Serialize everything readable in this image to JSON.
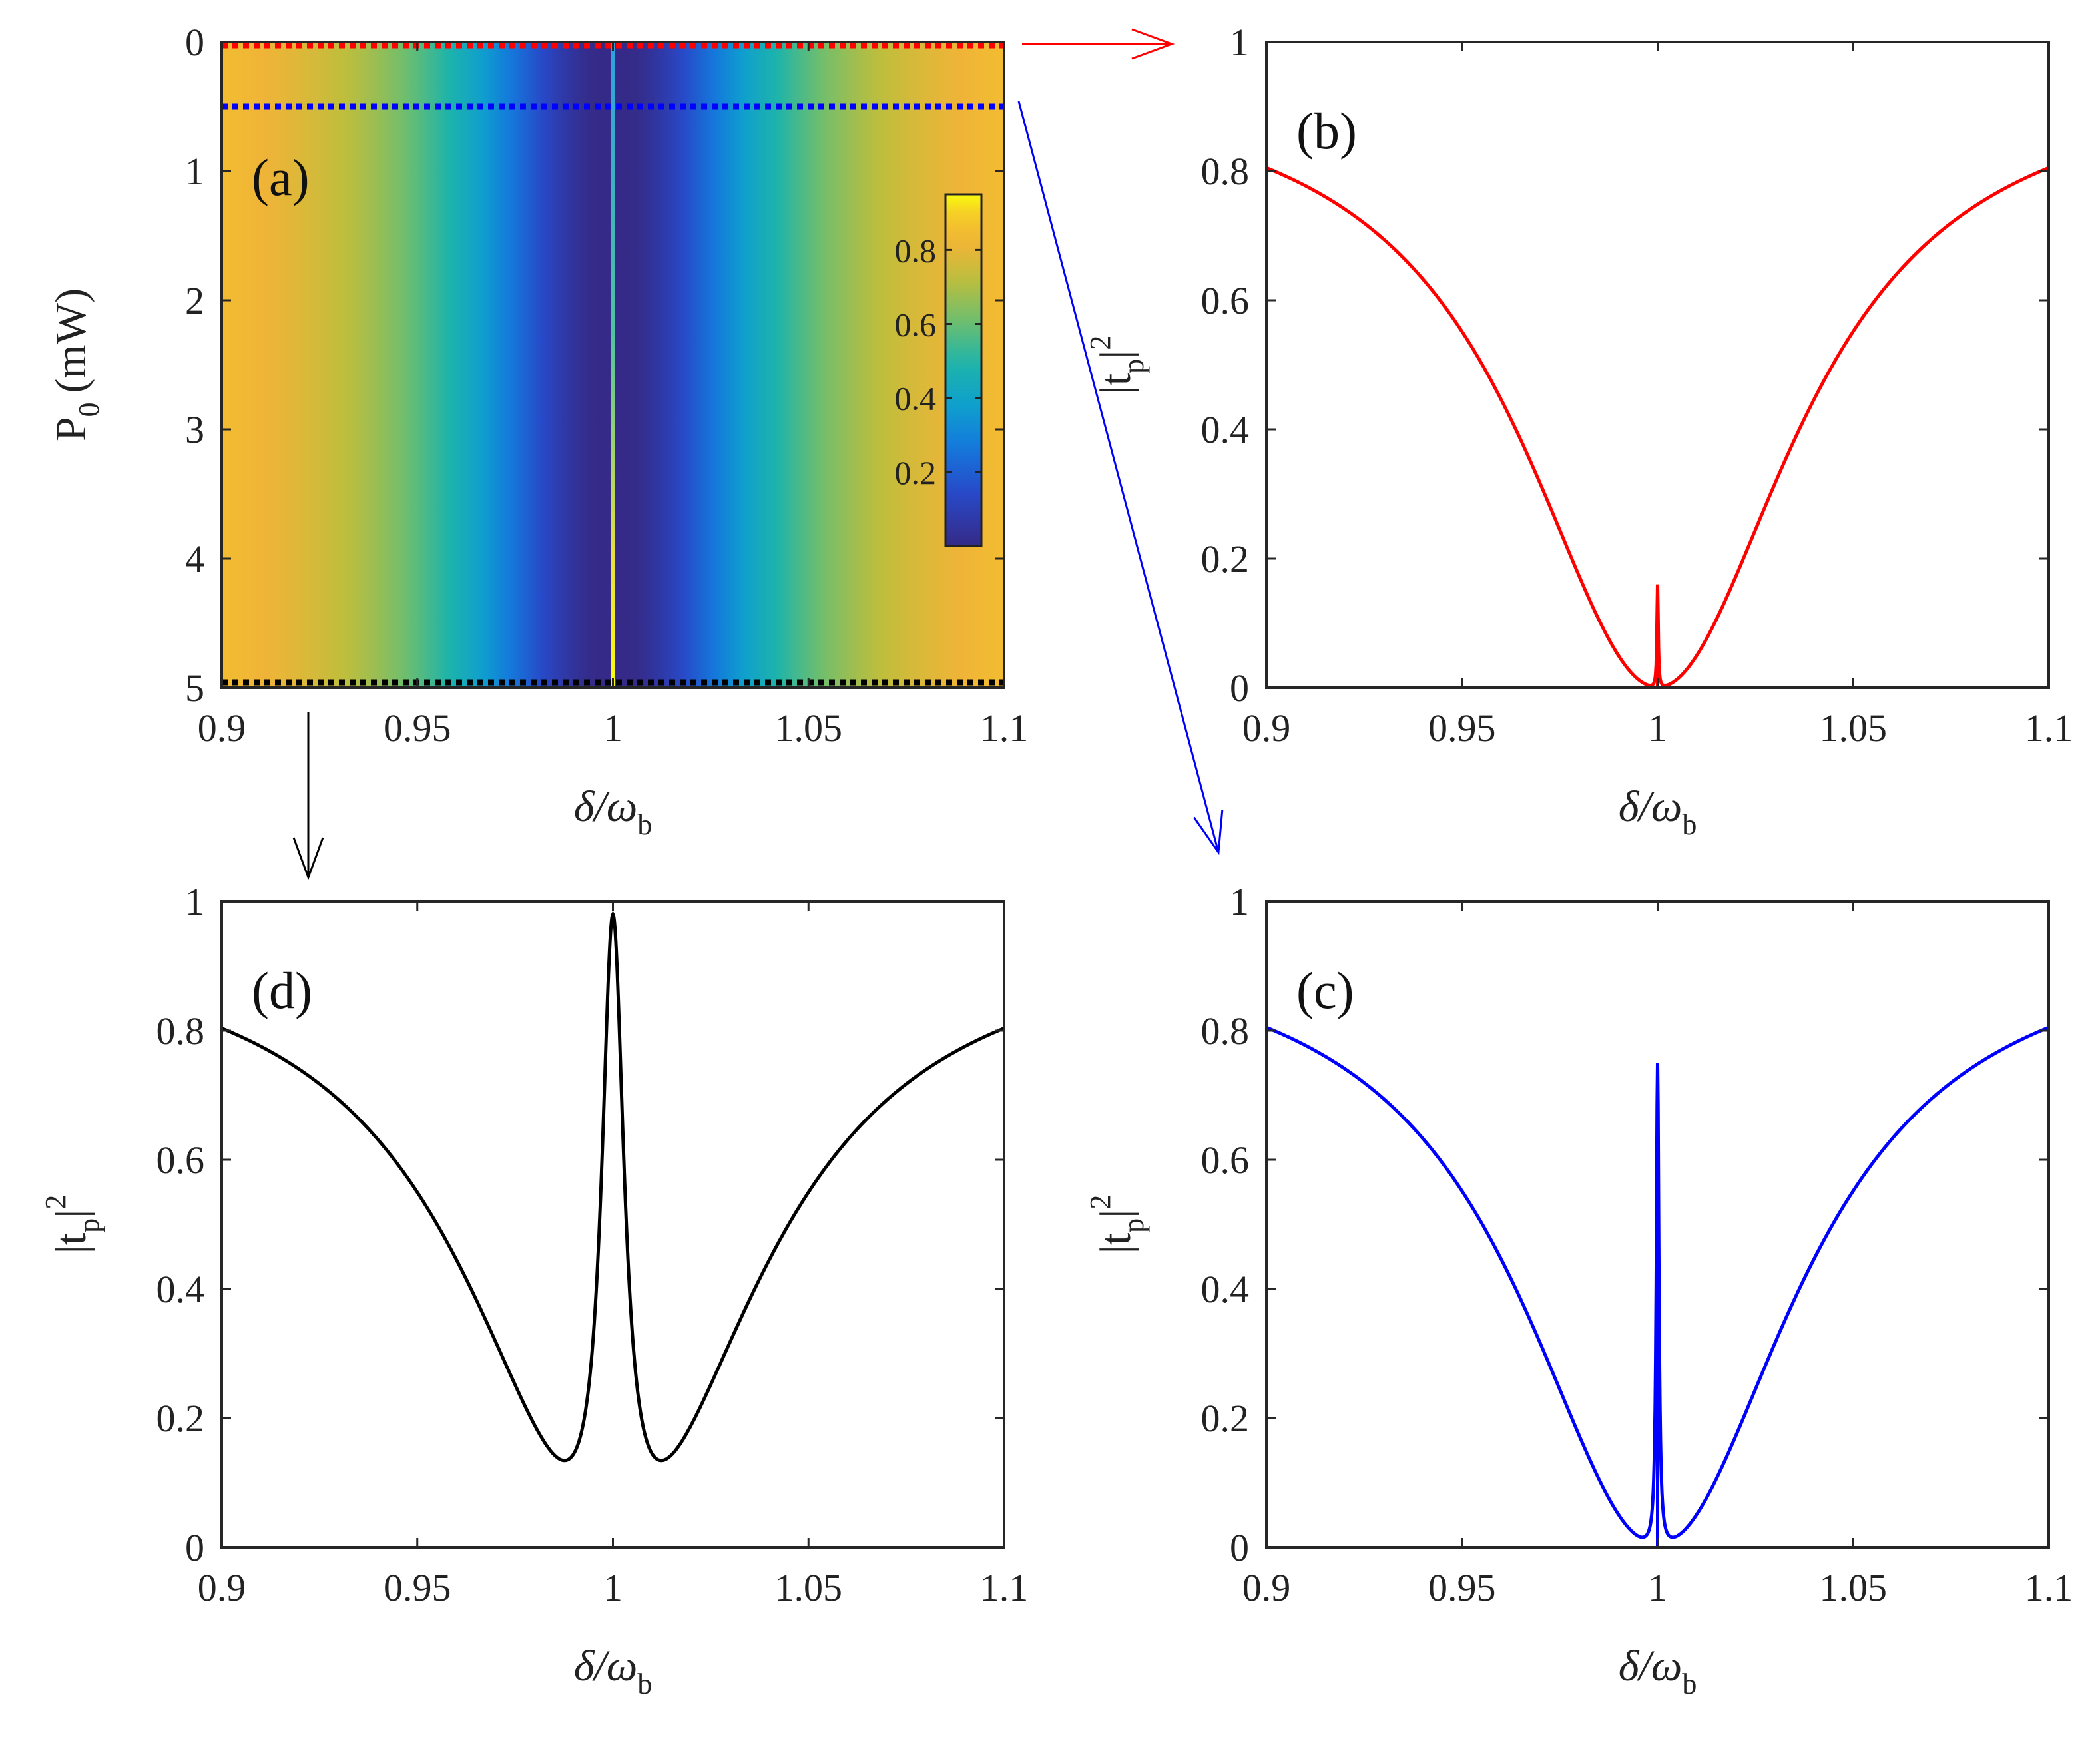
{
  "chart_data": [
    {
      "id": "a",
      "type": "heatmap",
      "panel_label": "(a)",
      "xlabel": "δ/ω",
      "xlabel_sub": "b",
      "ylabel": "P",
      "ylabel_sub": "0",
      "ylabel_unit": "(mW)",
      "xlim": [
        0.9,
        1.1
      ],
      "ylim": [
        0,
        5
      ],
      "y_reversed": true,
      "xticks": [
        0.9,
        0.95,
        1,
        1.05,
        1.1
      ],
      "xtick_labels": [
        "0.9",
        "0.95",
        "1",
        "1.05",
        "1.1"
      ],
      "yticks": [
        0,
        1,
        2,
        3,
        4,
        5
      ],
      "ytick_labels": [
        "0",
        "1",
        "2",
        "3",
        "4",
        "5"
      ],
      "colormap": "parula",
      "colorbar_ticks": [
        0.2,
        0.4,
        0.6,
        0.8
      ],
      "colorbar_tick_labels": [
        "0.2",
        "0.4",
        "0.6",
        "0.8"
      ],
      "colorbar_range": [
        0,
        0.95
      ],
      "cut_lines": [
        {
          "P0": 0,
          "color": "#ff0000",
          "target": "b"
        },
        {
          "P0": 0.5,
          "color": "#0000ff",
          "target": "c"
        },
        {
          "P0": 5,
          "color": "#000000",
          "target": "d"
        }
      ]
    },
    {
      "id": "b",
      "type": "line",
      "panel_label": "(b)",
      "xlabel": "δ/ω",
      "xlabel_sub": "b",
      "ylabel": "|t",
      "ylabel_sub": "p",
      "ylabel_sup": "|2",
      "xlim": [
        0.9,
        1.1
      ],
      "ylim": [
        0,
        1
      ],
      "xticks": [
        0.9,
        0.95,
        1,
        1.05,
        1.1
      ],
      "xtick_labels": [
        "0.9",
        "0.95",
        "1",
        "1.05",
        "1.1"
      ],
      "yticks": [
        0,
        0.2,
        0.4,
        0.6,
        0.8,
        1
      ],
      "ytick_labels": [
        "0",
        "0.2",
        "0.4",
        "0.6",
        "0.8",
        "1"
      ],
      "series": [
        {
          "name": "P0 = 0 mW",
          "color": "#ff0000",
          "peak_height": 0.16,
          "peak_width": 0.0002
        }
      ]
    },
    {
      "id": "c",
      "type": "line",
      "panel_label": "(c)",
      "xlabel": "δ/ω",
      "xlabel_sub": "b",
      "ylabel": "|t",
      "ylabel_sub": "p",
      "ylabel_sup": "|2",
      "xlim": [
        0.9,
        1.1
      ],
      "ylim": [
        0,
        1
      ],
      "xticks": [
        0.9,
        0.95,
        1,
        1.05,
        1.1
      ],
      "xtick_labels": [
        "0.9",
        "0.95",
        "1",
        "1.05",
        "1.1"
      ],
      "yticks": [
        0,
        0.2,
        0.4,
        0.6,
        0.8,
        1
      ],
      "ytick_labels": [
        "0",
        "0.2",
        "0.4",
        "0.6",
        "0.8",
        "1"
      ],
      "series": [
        {
          "name": "P0 = 0.5 mW",
          "color": "#0000ff",
          "peak_height": 0.75,
          "peak_width": 0.0004
        }
      ]
    },
    {
      "id": "d",
      "type": "line",
      "panel_label": "(d)",
      "xlabel": "δ/ω",
      "xlabel_sub": "b",
      "ylabel": "|t",
      "ylabel_sub": "p",
      "ylabel_sup": "|2",
      "xlim": [
        0.9,
        1.1
      ],
      "ylim": [
        0,
        1
      ],
      "xticks": [
        0.9,
        0.95,
        1,
        1.05,
        1.1
      ],
      "xtick_labels": [
        "0.9",
        "0.95",
        "1",
        "1.05",
        "1.1"
      ],
      "yticks": [
        0,
        0.2,
        0.4,
        0.6,
        0.8,
        1
      ],
      "ytick_labels": [
        "0",
        "0.2",
        "0.4",
        "0.6",
        "0.8",
        "1"
      ],
      "series": [
        {
          "name": "P0 = 5 mW",
          "color": "#000000",
          "peak_height": 0.98,
          "peak_width": 0.0035
        }
      ]
    }
  ],
  "background_curve": {
    "edge_value": 0.805,
    "half_width": 0.0425
  }
}
